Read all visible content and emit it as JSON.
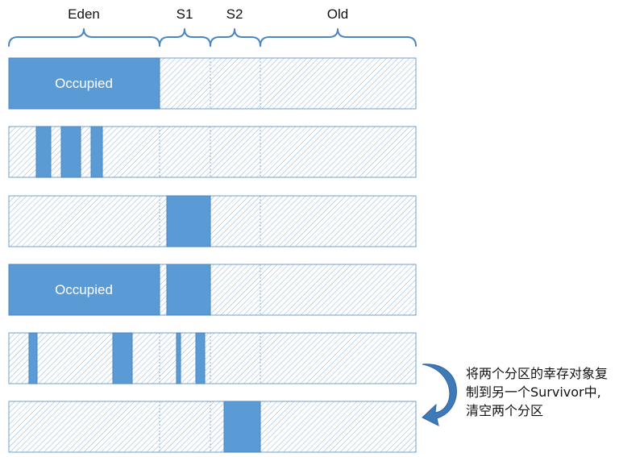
{
  "regions": {
    "eden": "Eden",
    "s1": "S1",
    "s2": "S2",
    "old": "Old"
  },
  "occupied_label": "Occupied",
  "note": {
    "line1": "将两个分区的幸存对象复",
    "line2": "制到另一个Survivor中,",
    "line3": "清空两个分区"
  },
  "colors": {
    "fill": "#5b9bd5",
    "stroke": "#4a86c0",
    "hatch": "#9bbbd8",
    "arrow": "#3f7ab8"
  }
}
